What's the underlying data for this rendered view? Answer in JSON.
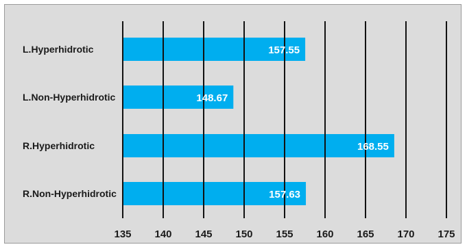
{
  "chart_data": {
    "type": "bar",
    "orientation": "horizontal",
    "categories": [
      "L.Hyperhidrotic",
      "L.Non-Hyperhidrotic",
      "R.Hyperhidrotic",
      "R.Non-Hyperhidrotic"
    ],
    "values": [
      157.55,
      148.67,
      168.55,
      157.63
    ],
    "data_labels": [
      "157.55",
      "148.67",
      "168.55",
      "157.63"
    ],
    "xlim": [
      135,
      175
    ],
    "xticks": [
      "135",
      "140",
      "145",
      "150",
      "155",
      "160",
      "165",
      "170",
      "175"
    ],
    "grid": "vertical",
    "title": "",
    "xlabel": "",
    "ylabel": "",
    "colors": {
      "bar": "#00aeef",
      "background": "#dcdcdc",
      "gridline": "#111111"
    }
  }
}
